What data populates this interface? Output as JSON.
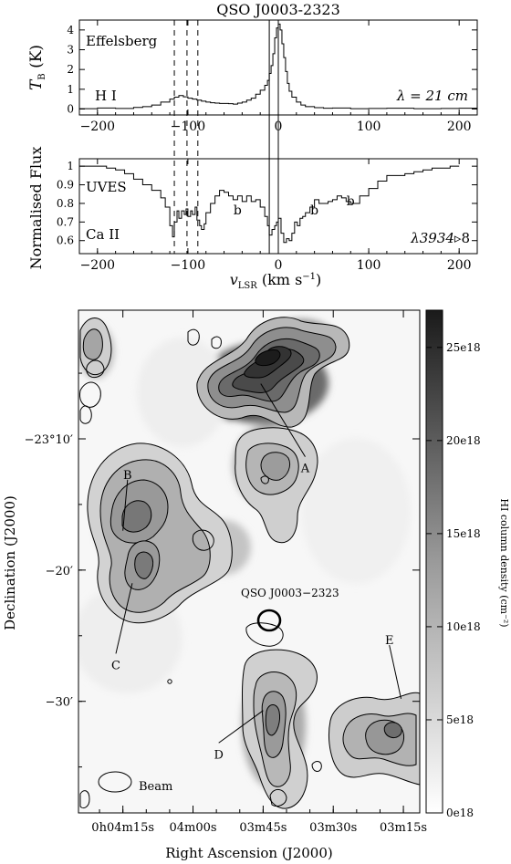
{
  "title": "QSO J0003-2323",
  "chart_data": [
    {
      "type": "line",
      "panel": "HI emission spectrum",
      "title": "QSO J0003-2323",
      "telescope": "Effelsberg",
      "species": "H I",
      "wavelength": "λ = 21 cm",
      "ylabel": "T_B (K)",
      "xlim": [
        -220,
        220
      ],
      "ylim": [
        -0.3,
        4.5
      ],
      "xticks": [
        -200,
        -100,
        0,
        100,
        200
      ],
      "yticks": [
        0,
        1,
        2,
        3,
        4
      ],
      "series": [
        {
          "x": [
            -220,
            -200,
            -180,
            -160,
            -150,
            -140,
            -130,
            -120,
            -115,
            -110,
            -105,
            -100,
            -95,
            -90,
            -85,
            -80,
            -75,
            -70,
            -65,
            -60,
            -55,
            -50,
            -45,
            -40,
            -35,
            -30,
            -25,
            -20,
            -15,
            -12,
            -10,
            -8,
            -6,
            -4,
            -2,
            0,
            2,
            4,
            6,
            8,
            10,
            12,
            15,
            20,
            25,
            30,
            40,
            50,
            60,
            80,
            100,
            120,
            150,
            180,
            200,
            220
          ],
          "values": [
            0.02,
            0.05,
            0.03,
            0.08,
            0.12,
            0.2,
            0.35,
            0.5,
            0.6,
            0.68,
            0.62,
            0.55,
            0.5,
            0.45,
            0.4,
            0.35,
            0.32,
            0.3,
            0.28,
            0.28,
            0.27,
            0.25,
            0.3,
            0.35,
            0.45,
            0.55,
            0.75,
            0.95,
            1.2,
            1.45,
            1.8,
            2.2,
            2.8,
            3.6,
            4.1,
            4.3,
            4.0,
            3.3,
            2.6,
            1.9,
            1.3,
            0.9,
            0.6,
            0.35,
            0.2,
            0.12,
            0.07,
            0.04,
            0.05,
            0.02,
            0.03,
            0.04,
            0.02,
            0.03,
            0.04,
            0.02
          ]
        }
      ]
    },
    {
      "type": "line",
      "panel": "Ca II absorption spectrum",
      "instrument": "UVES",
      "species": "Ca II",
      "line": "λ3934",
      "line_suffix": "▹8",
      "ylabel": "Normalised Flux",
      "xlabel": "v_LSR (km s⁻¹)",
      "xlim": [
        -220,
        220
      ],
      "ylim": [
        0.53,
        1.04
      ],
      "xticks": [
        -200,
        -100,
        0,
        100,
        200
      ],
      "yticks": [
        0.6,
        0.7,
        0.8,
        0.9,
        1
      ],
      "annotations": [
        {
          "text": "b",
          "x": -45,
          "y": 0.74
        },
        {
          "text": "b",
          "x": 40,
          "y": 0.74
        },
        {
          "text": "b",
          "x": 80,
          "y": 0.79
        }
      ],
      "series": [
        {
          "x": [
            -220,
            -210,
            -200,
            -190,
            -180,
            -170,
            -160,
            -150,
            -140,
            -130,
            -125,
            -120,
            -117,
            -115,
            -112,
            -110,
            -107,
            -104,
            -102,
            -100,
            -97,
            -95,
            -92,
            -90,
            -87,
            -85,
            -82,
            -80,
            -75,
            -70,
            -65,
            -60,
            -55,
            -50,
            -45,
            -40,
            -35,
            -30,
            -25,
            -20,
            -15,
            -12,
            -10,
            -7,
            -4,
            -2,
            0,
            3,
            6,
            9,
            12,
            15,
            18,
            21,
            24,
            27,
            30,
            35,
            40,
            45,
            50,
            55,
            60,
            65,
            70,
            75,
            80,
            90,
            100,
            110,
            120,
            130,
            140,
            150,
            160,
            170,
            180,
            190,
            200
          ],
          "values": [
            1.0,
            1.0,
            1.0,
            0.99,
            0.98,
            0.96,
            0.93,
            0.9,
            0.87,
            0.83,
            0.78,
            0.68,
            0.62,
            0.7,
            0.76,
            0.72,
            0.76,
            0.74,
            0.77,
            0.73,
            0.76,
            0.74,
            0.78,
            0.71,
            0.68,
            0.66,
            0.69,
            0.75,
            0.8,
            0.84,
            0.87,
            0.86,
            0.84,
            0.82,
            0.84,
            0.81,
            0.84,
            0.81,
            0.82,
            0.78,
            0.73,
            0.68,
            0.63,
            0.66,
            0.68,
            0.7,
            0.72,
            0.64,
            0.59,
            0.61,
            0.6,
            0.64,
            0.7,
            0.68,
            0.72,
            0.73,
            0.75,
            0.78,
            0.82,
            0.8,
            0.8,
            0.81,
            0.82,
            0.84,
            0.83,
            0.81,
            0.8,
            0.84,
            0.88,
            0.92,
            0.95,
            0.95,
            0.96,
            0.97,
            0.98,
            0.99,
            0.99,
            1.0,
            1.0
          ]
        }
      ]
    },
    {
      "type": "heatmap",
      "panel": "HI column density map",
      "xlabel": "Right Ascension (J2000)",
      "ylabel": "Declination (J2000)",
      "colorbar_label": "HI column density (cm⁻²)",
      "colorbar_ticks": [
        "25e18",
        "20e18",
        "15e18",
        "10e18",
        "5e18",
        "0e18"
      ],
      "colorbar_values": [
        25,
        20,
        15,
        10,
        5,
        0
      ],
      "colorbar_range": [
        0,
        27
      ],
      "xticks": [
        {
          "label": "0h04m15s",
          "ra_s": 255
        },
        {
          "label": "04m00s",
          "ra_s": 240
        },
        {
          "label": "03m45s",
          "ra_s": 225
        },
        {
          "label": "03m30s",
          "ra_s": 210
        },
        {
          "label": "03m15s",
          "ra_s": 195
        }
      ],
      "yticks": [
        {
          "label": "−23°10′",
          "dec_arcmin": -10
        },
        {
          "label": "−20′",
          "dec_arcmin": -20
        },
        {
          "label": "−30′",
          "dec_arcmin": -30
        }
      ],
      "ra_range_s": [
        264.5,
        191.5
      ],
      "dec_range_arcmin": [
        -38.5,
        -0.2
      ],
      "qso": {
        "label": "QSO J0003−2323",
        "ra_s": 225.5,
        "dec_arcmin": -23.6
      },
      "beam_label": "Beam",
      "clouds": [
        {
          "label": "A",
          "peak": 26.5,
          "ra_s": 225.5,
          "dec_arcmin": -5.8,
          "label_ra_s": 216,
          "label_dec_arcmin": -12.2
        },
        {
          "label": "B",
          "peak": 15,
          "ra_s": 255,
          "dec_arcmin": -17.0,
          "label_ra_s": 254,
          "label_dec_arcmin": -12.7
        },
        {
          "label": "C",
          "peak": 14,
          "ra_s": 253,
          "dec_arcmin": -21.0,
          "label_ra_s": 256.5,
          "label_dec_arcmin": -27.2
        },
        {
          "label": "D",
          "peak": 9,
          "ra_s": 225,
          "dec_arcmin": -30.7,
          "label_ra_s": 234.5,
          "label_dec_arcmin": -34.0
        },
        {
          "label": "E",
          "peak": 11,
          "ra_s": 195.5,
          "dec_arcmin": -29.8,
          "label_ra_s": 198,
          "label_dec_arcmin": -25.3
        }
      ]
    }
  ]
}
